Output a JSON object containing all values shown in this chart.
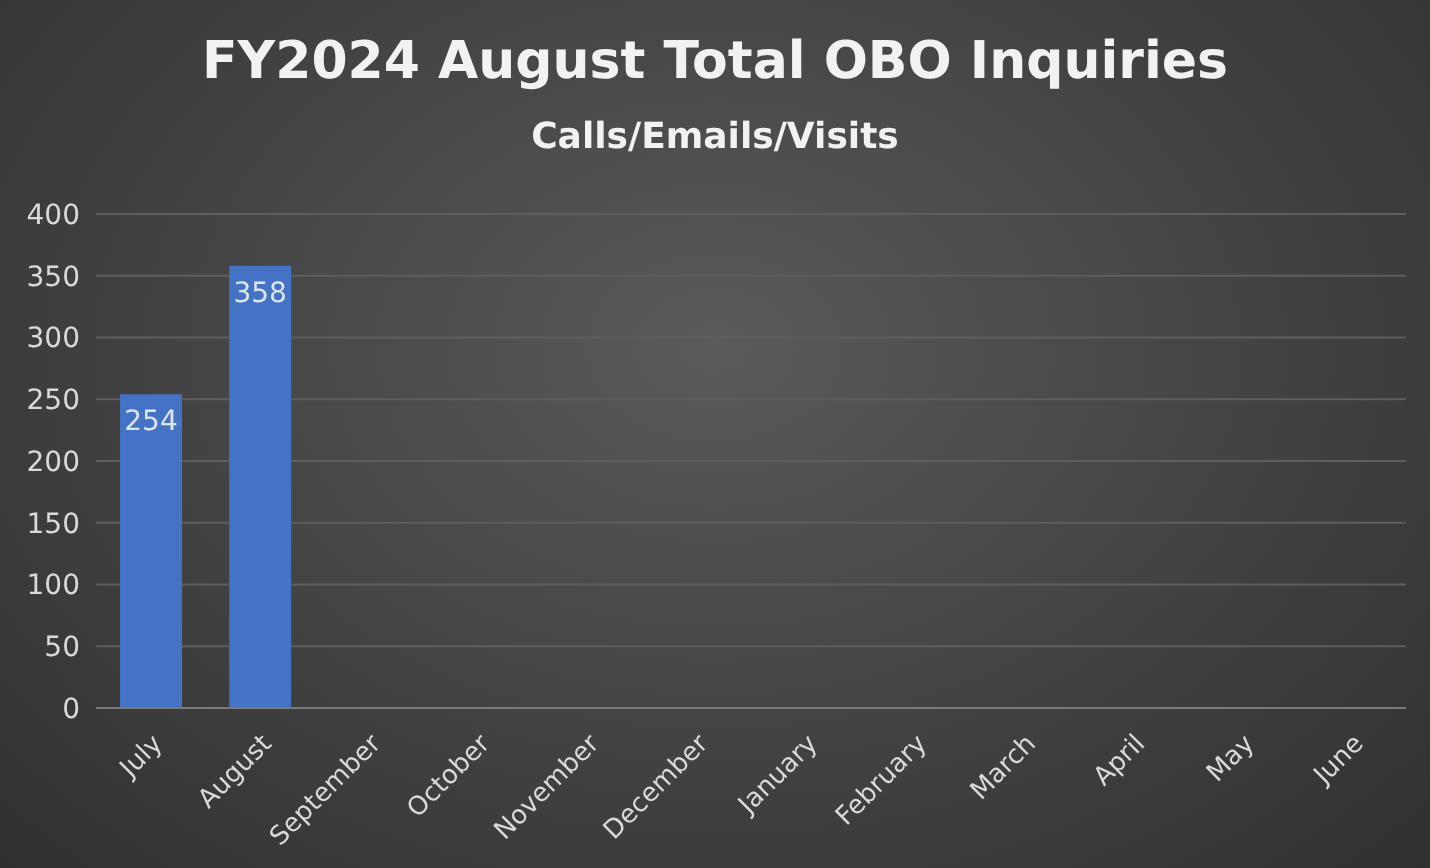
{
  "chart_data": {
    "type": "bar",
    "title": "FY2024 August Total OBO Inquiries",
    "subtitle": "Calls/Emails/Visits",
    "categories": [
      "July",
      "August",
      "September",
      "October",
      "November",
      "December",
      "January",
      "February",
      "March",
      "April",
      "May",
      "June"
    ],
    "values": [
      254,
      358,
      null,
      null,
      null,
      null,
      null,
      null,
      null,
      null,
      null,
      null
    ],
    "color": "#4472c4",
    "ylim": [
      0,
      400
    ],
    "yticks": [
      0,
      50,
      100,
      150,
      200,
      250,
      300,
      350,
      400
    ],
    "grid": "y",
    "data_labels": true
  }
}
